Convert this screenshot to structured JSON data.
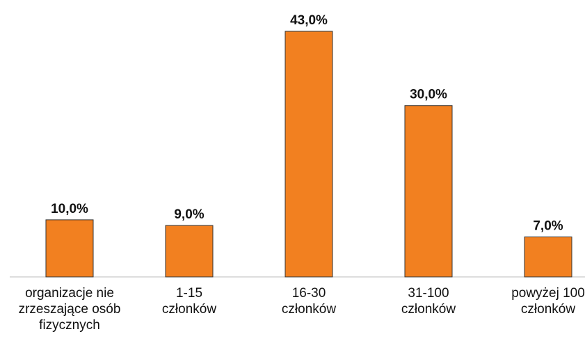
{
  "chart_data": {
    "type": "bar",
    "categories": [
      "organizacje nie zrzeszające osób fizycznych",
      "1-15 członków",
      "16-30 członków",
      "31-100 członków",
      "powyżej 100 członków"
    ],
    "values": [
      10,
      9,
      43,
      30,
      7
    ],
    "value_labels": [
      "10,0%",
      "9,0%",
      "43,0%",
      "30,0%",
      "7,0%"
    ],
    "color": "#f28020"
  }
}
